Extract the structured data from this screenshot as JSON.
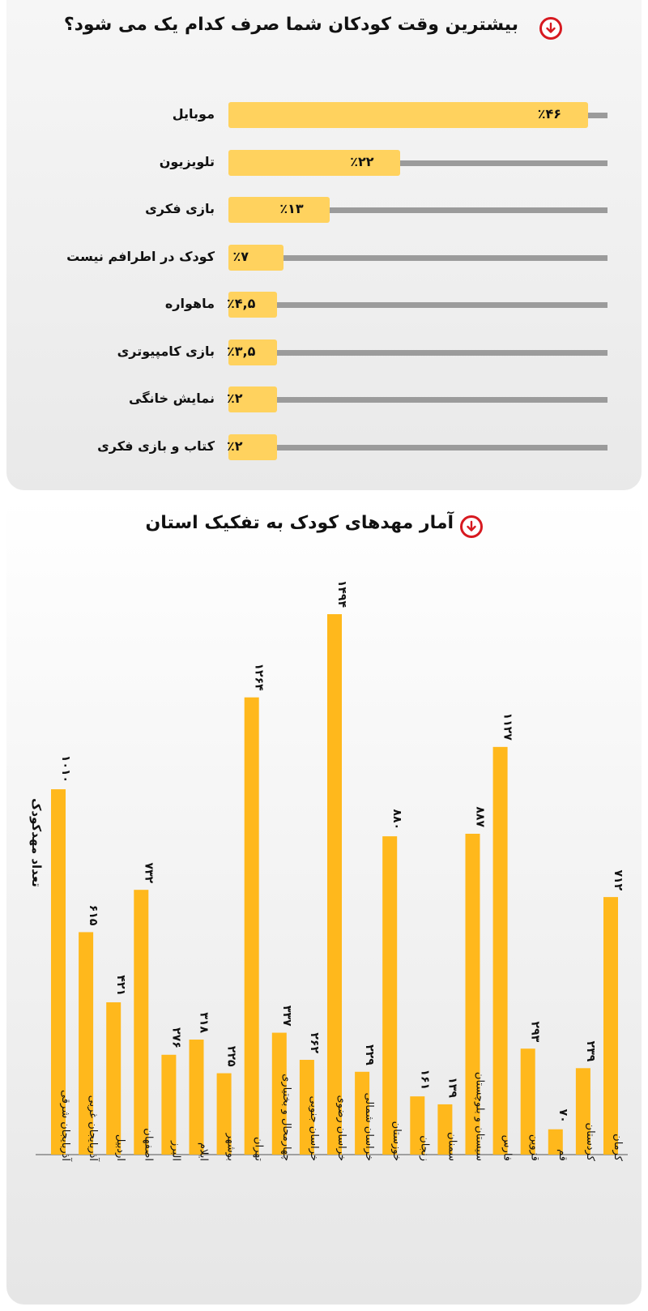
{
  "section1": {
    "title": "بیشترین وقت کودکان شما صرف کدام یک می شود؟",
    "chart_data": {
      "type": "bar",
      "orientation": "horizontal",
      "categories": [
        "موبایل",
        "تلویزیون",
        "بازی فکری",
        "کودک در اطرافم نیست",
        "ماهواره",
        "بازی کامپیوتری",
        "نمایش خانگی",
        "کتاب و بازی فکری"
      ],
      "values": [
        46,
        22,
        13,
        7,
        4.5,
        3.5,
        2,
        2
      ],
      "value_labels": [
        "٪۴۶",
        "٪۲۲",
        "٪۱۳",
        "٪۷",
        "٪۴,۵",
        "٪۳,۵",
        "٪۲",
        "٪۲"
      ],
      "unit": "%",
      "xlim": [
        0,
        48
      ],
      "bar_color": "#ffd25e",
      "track_color": "#9b9b9b"
    }
  },
  "section2": {
    "title": "آمار مهدهای کودک به تفکیک استان",
    "chart_data": {
      "type": "bar",
      "ylabel": "تعداد مهدکودک",
      "categories": [
        "آذربایجان شرقی",
        "آذربایجان غربی",
        "اردبیل",
        "اصفهان",
        "البرز",
        "ایلام",
        "بوشهر",
        "تهران",
        "چهارمحال و بختیاری",
        "خراسان جنوبی",
        "خراسان رضوی",
        "خراسان شمالی",
        "خوزستان",
        "زنجان",
        "سمنان",
        "سیستان و بلوچستان",
        "فارس",
        "قزوین",
        "قم",
        "کردستان",
        "کرمان"
      ],
      "values": [
        1010,
        615,
        421,
        732,
        276,
        318,
        225,
        1264,
        337,
        262,
        1494,
        229,
        880,
        161,
        139,
        887,
        1127,
        293,
        70,
        239,
        712
      ],
      "value_labels": [
        "۱۰۱۰",
        "۶۱۵",
        "۴۲۱",
        "۷۳۲",
        "۲۷۶",
        "۳۱۸",
        "۲۲۵",
        "۱۲۶۴",
        "۳۳۷",
        "۲۶۲",
        "۱۴۹۴",
        "۲۲۹",
        "۸۸۰",
        "۱۶۱",
        "۱۳۹",
        "۸۸۷",
        "۱۱۲۷",
        "۲۹۳",
        "۷۰",
        "۲۳۹",
        "۷۱۲"
      ],
      "ylim": [
        0,
        1494
      ],
      "bar_color": "#ffb81c",
      "grid": false
    }
  },
  "icons": {
    "section_icon": "arrow-down-circle-icon",
    "accent": "#d71920"
  }
}
